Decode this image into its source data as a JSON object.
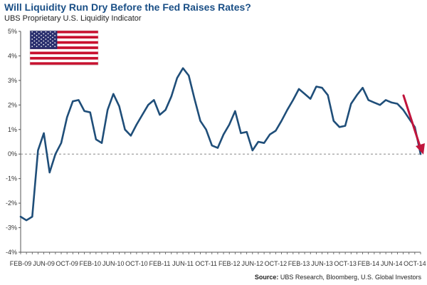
{
  "chart_data": {
    "type": "line",
    "title": "Will Liquidity Run Dry Before the Fed Raises Rates?",
    "subtitle": "UBS Proprietary U.S. Liquidity Indicator",
    "source_label": "Source:",
    "source_text": "UBS Research, Bloomberg, U.S. Global Investors",
    "ylim": [
      -4,
      5
    ],
    "yticks": [
      5,
      4,
      3,
      2,
      1,
      0,
      -1,
      -2,
      -3,
      -4
    ],
    "ytick_labels": [
      "5%",
      "4%",
      "3%",
      "2%",
      "1%",
      "0%",
      "-1%",
      "-2%",
      "-3%",
      "-4%"
    ],
    "x_range_months": [
      "2009-02",
      "2014-11"
    ],
    "xtick_labels": [
      "FEB-09",
      "JUN-09",
      "OCT-09",
      "FEB-10",
      "JUN-10",
      "OCT-10",
      "FEB-11",
      "JUN-11",
      "OCT-11",
      "FEB-12",
      "JUN-12",
      "OCT-12",
      "FEB-13",
      "JUN-13",
      "OCT-13",
      "FEB-14",
      "JUN-14",
      "OCT-14"
    ],
    "xtick_dates": [
      "2009-02",
      "2009-06",
      "2009-10",
      "2010-02",
      "2010-06",
      "2010-10",
      "2011-02",
      "2011-06",
      "2011-10",
      "2012-02",
      "2012-06",
      "2012-10",
      "2013-02",
      "2013-06",
      "2013-10",
      "2014-02",
      "2014-06",
      "2014-10"
    ],
    "series": [
      {
        "color": "#1f4e79",
        "x": [
          "2009-02",
          "2009-03",
          "2009-04",
          "2009-05",
          "2009-06",
          "2009-07",
          "2009-08",
          "2009-09",
          "2009-10",
          "2009-11",
          "2009-12",
          "2010-01",
          "2010-02",
          "2010-03",
          "2010-04",
          "2010-05",
          "2010-06",
          "2010-07",
          "2010-08",
          "2010-09",
          "2010-10",
          "2010-11",
          "2010-12",
          "2011-01",
          "2011-02",
          "2011-03",
          "2011-04",
          "2011-05",
          "2011-06",
          "2011-07",
          "2011-08",
          "2011-09",
          "2011-10",
          "2011-11",
          "2011-12",
          "2012-01",
          "2012-02",
          "2012-03",
          "2012-04",
          "2012-05",
          "2012-06",
          "2012-07",
          "2012-08",
          "2012-09",
          "2012-10",
          "2012-11",
          "2012-12",
          "2013-01",
          "2013-02",
          "2013-03",
          "2013-04",
          "2013-05",
          "2013-06",
          "2013-07",
          "2013-08",
          "2013-09",
          "2013-10",
          "2013-11",
          "2013-12",
          "2014-01",
          "2014-02",
          "2014-03",
          "2014-04",
          "2014-05",
          "2014-06",
          "2014-07",
          "2014-08",
          "2014-09",
          "2014-10",
          "2014-11"
        ],
        "y": [
          -2.55,
          -2.7,
          -2.55,
          0.15,
          0.85,
          -0.75,
          0.0,
          0.45,
          1.5,
          2.15,
          2.2,
          1.75,
          1.7,
          0.6,
          0.45,
          1.8,
          2.45,
          1.95,
          1.0,
          0.75,
          1.2,
          1.6,
          2.0,
          2.2,
          1.6,
          1.8,
          2.35,
          3.1,
          3.5,
          3.2,
          2.25,
          1.35,
          1.0,
          0.35,
          0.25,
          0.8,
          1.2,
          1.75,
          0.85,
          0.9,
          0.15,
          0.5,
          0.45,
          0.8,
          0.95,
          1.35,
          1.8,
          2.2,
          2.65,
          2.45,
          2.25,
          2.75,
          2.7,
          2.4,
          1.35,
          1.1,
          1.15,
          2.05,
          2.4,
          2.7,
          2.2,
          2.1,
          2.0,
          2.2,
          2.1,
          2.05,
          1.8,
          1.45,
          1.1,
          0.0
        ]
      }
    ],
    "zero_line": "dashed",
    "arrow_color": "#c0143c",
    "flag": "us-flag"
  }
}
